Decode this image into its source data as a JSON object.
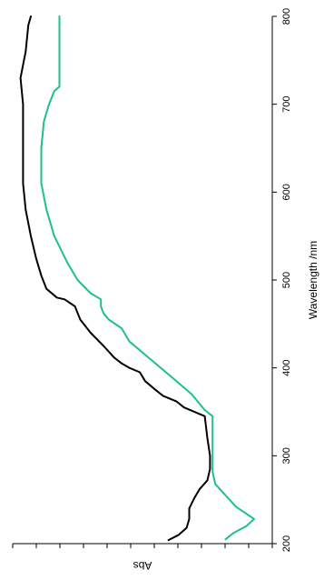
{
  "chart_data": {
    "type": "line",
    "orientation": "rotated-90-clockwise",
    "xlabel": "Wavelength /nm",
    "ylabel": "Abs",
    "xlim": [
      200,
      800
    ],
    "x_ticks": [
      200,
      300,
      400,
      500,
      600,
      700,
      800
    ],
    "x_tick_labels": [
      "200",
      "300",
      "400",
      "500",
      "600",
      "700",
      "800"
    ],
    "y_ticks_count": 12,
    "ylim": [
      0,
      1
    ],
    "grid": false,
    "legend": "none",
    "series": [
      {
        "color": "#000000",
        "x": [
          204,
          210,
          218,
          228,
          240,
          252,
          262,
          272,
          285,
          300,
          320,
          345,
          355,
          362,
          368,
          375,
          385,
          395,
          400,
          405,
          412,
          425,
          440,
          455,
          470,
          478,
          480,
          490,
          505,
          525,
          550,
          580,
          610,
          640,
          670,
          700,
          730,
          760,
          790,
          800
        ],
        "y": [
          0.4,
          0.36,
          0.33,
          0.32,
          0.32,
          0.3,
          0.28,
          0.25,
          0.24,
          0.24,
          0.25,
          0.26,
          0.34,
          0.37,
          0.42,
          0.45,
          0.49,
          0.51,
          0.55,
          0.58,
          0.61,
          0.65,
          0.7,
          0.74,
          0.76,
          0.8,
          0.83,
          0.87,
          0.89,
          0.91,
          0.93,
          0.95,
          0.96,
          0.96,
          0.96,
          0.96,
          0.97,
          0.95,
          0.94,
          0.93
        ]
      },
      {
        "color": "#1dbf8e",
        "x": [
          205,
          212,
          220,
          228,
          234,
          242,
          255,
          268,
          282,
          300,
          320,
          345,
          352,
          370,
          390,
          410,
          430,
          445,
          455,
          462,
          470,
          478,
          485,
          500,
          520,
          550,
          580,
          610,
          650,
          680,
          700,
          715,
          720,
          750,
          790,
          800
        ],
        "y": [
          0.18,
          0.15,
          0.1,
          0.07,
          0.1,
          0.14,
          0.18,
          0.22,
          0.23,
          0.23,
          0.23,
          0.23,
          0.26,
          0.31,
          0.39,
          0.47,
          0.55,
          0.58,
          0.63,
          0.65,
          0.66,
          0.66,
          0.7,
          0.75,
          0.79,
          0.84,
          0.87,
          0.89,
          0.89,
          0.88,
          0.86,
          0.84,
          0.82,
          0.82,
          0.82,
          0.82
        ]
      }
    ]
  }
}
